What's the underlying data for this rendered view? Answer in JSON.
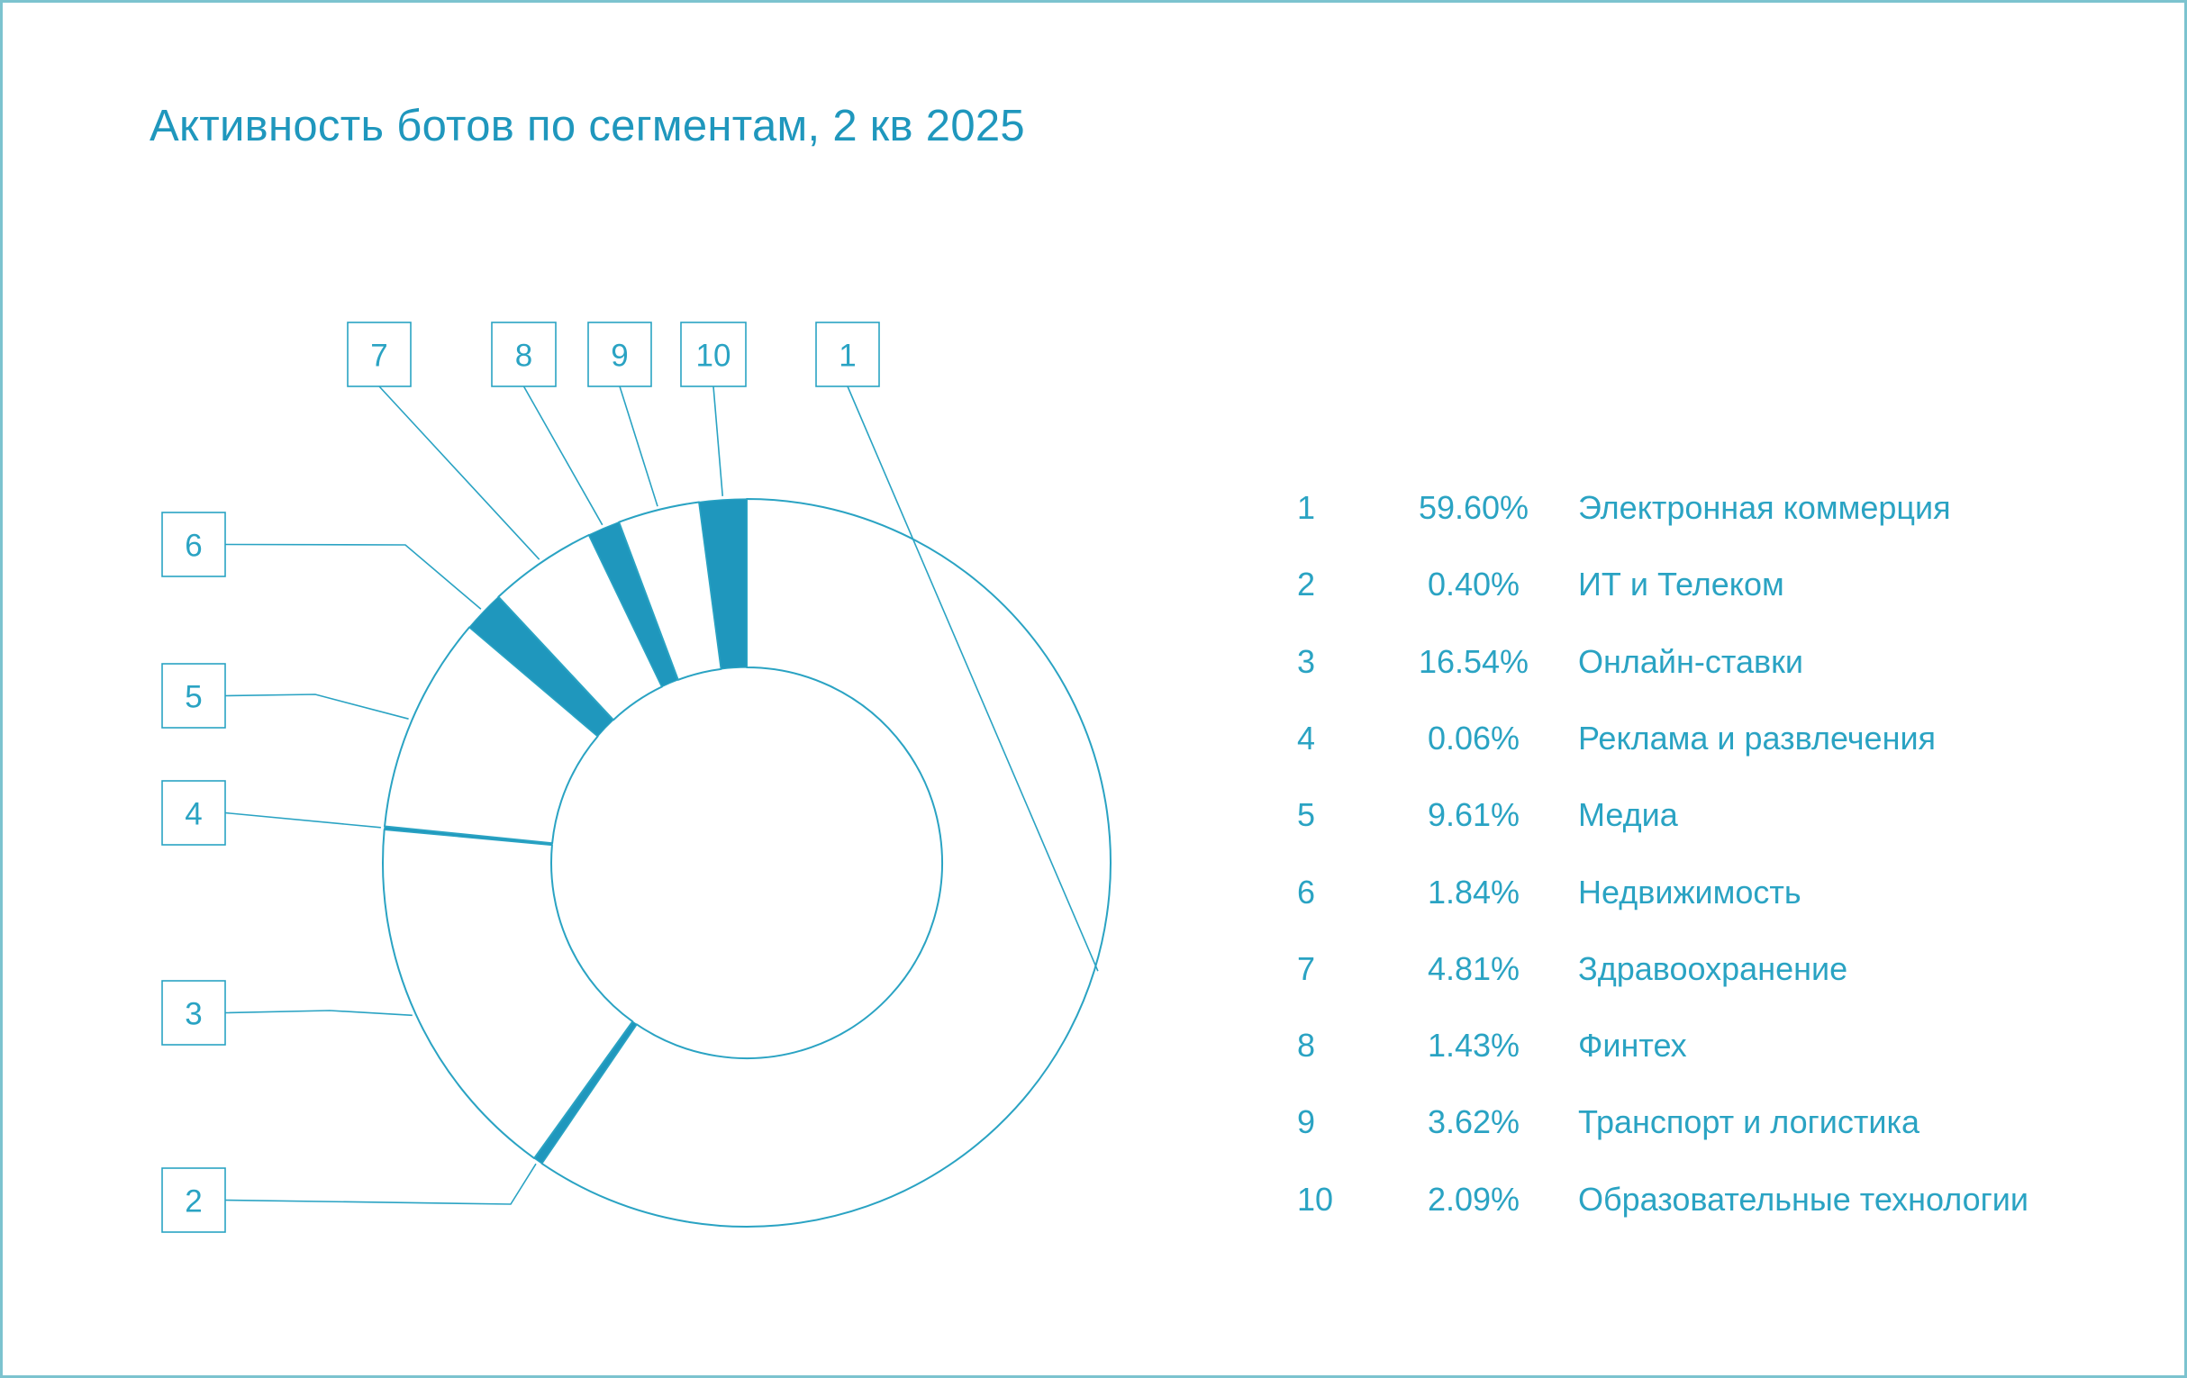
{
  "title": "Активность ботов по сегментам, 2 кв 2025",
  "colors": {
    "accent": "#1f97bd",
    "outline": "#2aa3c3",
    "frame": "#7cc3cf",
    "background": "#ffffff"
  },
  "chart_data": {
    "type": "pie",
    "variant": "donut",
    "title": "Активность ботов по сегментам, 2 кв 2025",
    "slices": [
      {
        "id": "1",
        "value": 59.6,
        "value_label": "59.60%",
        "label": "Электронная коммерция",
        "filled": false
      },
      {
        "id": "2",
        "value": 0.4,
        "value_label": "0.40%",
        "label": "ИТ и Телеком",
        "filled": true
      },
      {
        "id": "3",
        "value": 16.54,
        "value_label": "16.54%",
        "label": "Онлайн-ставки",
        "filled": false
      },
      {
        "id": "4",
        "value": 0.06,
        "value_label": "0.06%",
        "label": "Реклама и развлечения",
        "filled": true
      },
      {
        "id": "5",
        "value": 9.61,
        "value_label": "9.61%",
        "label": "Медиа",
        "filled": false
      },
      {
        "id": "6",
        "value": 1.84,
        "value_label": "1.84%",
        "label": "Недвижимость",
        "filled": true
      },
      {
        "id": "7",
        "value": 4.81,
        "value_label": "4.81%",
        "label": "Здравоохранение",
        "filled": false
      },
      {
        "id": "8",
        "value": 1.43,
        "value_label": "1.43%",
        "label": "Финтех",
        "filled": true
      },
      {
        "id": "9",
        "value": 3.62,
        "value_label": "3.62%",
        "label": "Транспорт и логистика",
        "filled": false
      },
      {
        "id": "10",
        "value": 2.09,
        "value_label": "2.09%",
        "label": "Образовательные технологии",
        "filled": true
      }
    ],
    "legend_position": "right"
  }
}
